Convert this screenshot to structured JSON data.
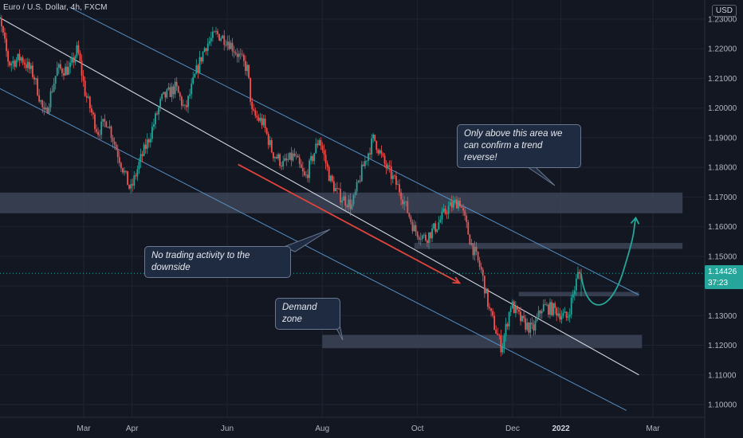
{
  "symbol": {
    "title": "Euro / U.S. Dollar, 4h, FXCM"
  },
  "currency_button": "USD",
  "price_tag": {
    "price": "1.14426",
    "countdown": "37:23",
    "color": "#26a69a"
  },
  "colors": {
    "background": "#131722",
    "bull": "#26a69a",
    "bear": "#ef5350",
    "channel_edge": "#5b9bd5",
    "channel_mid": "#e8ecf4",
    "zone": "#3c4456",
    "red_arrow": "#e0443c",
    "projection_arrow": "#26a69a"
  },
  "annotations": {
    "trend_reverse": "Only above this area we can confirm a trend reverse!",
    "no_trading": "No trading activity to the downside",
    "demand": "Demand zone"
  },
  "chart_data": {
    "type": "candlestick",
    "title": "Euro / U.S. Dollar, 4h, FXCM",
    "ylim": [
      1.094,
      1.234
    ],
    "y_ticks": [
      "1.23000",
      "1.22000",
      "1.21000",
      "1.20000",
      "1.19000",
      "1.18000",
      "1.17000",
      "1.16000",
      "1.15000",
      "1.14000",
      "1.13000",
      "1.12000",
      "1.11000",
      "1.10000"
    ],
    "y_tick_values": [
      1.23,
      1.22,
      1.21,
      1.2,
      1.19,
      1.18,
      1.17,
      1.16,
      1.15,
      1.14,
      1.13,
      1.12,
      1.11,
      1.1
    ],
    "x_labels": [
      "Mar",
      "Apr",
      "Jun",
      "Aug",
      "Oct",
      "Dec",
      "2022",
      "Mar"
    ],
    "x_label_dates": [
      "2021-03-01",
      "2021-04-01",
      "2021-06-01",
      "2021-08-01",
      "2021-10-01",
      "2021-12-01",
      "2022-01-01",
      "2022-03-01"
    ],
    "xlim": [
      "2021-01-01",
      "2022-03-20"
    ],
    "price_path": [
      [
        "2021-01-01",
        1.223
      ],
      [
        "2021-01-06",
        1.23
      ],
      [
        "2021-01-12",
        1.215
      ],
      [
        "2021-01-20",
        1.217
      ],
      [
        "2021-01-28",
        1.211
      ],
      [
        "2021-02-04",
        1.197
      ],
      [
        "2021-02-12",
        1.213
      ],
      [
        "2021-02-20",
        1.213
      ],
      [
        "2021-02-25",
        1.22
      ],
      [
        "2021-03-02",
        1.205
      ],
      [
        "2021-03-10",
        1.192
      ],
      [
        "2021-03-16",
        1.196
      ],
      [
        "2021-03-22",
        1.186
      ],
      [
        "2021-03-31",
        1.172
      ],
      [
        "2021-04-06",
        1.182
      ],
      [
        "2021-04-12",
        1.19
      ],
      [
        "2021-04-20",
        1.203
      ],
      [
        "2021-04-29",
        1.207
      ],
      [
        "2021-05-05",
        1.199
      ],
      [
        "2021-05-12",
        1.212
      ],
      [
        "2021-05-18",
        1.221
      ],
      [
        "2021-05-25",
        1.225
      ],
      [
        "2021-06-01",
        1.223
      ],
      [
        "2021-06-08",
        1.218
      ],
      [
        "2021-06-14",
        1.213
      ],
      [
        "2021-06-17",
        1.198
      ],
      [
        "2021-06-24",
        1.195
      ],
      [
        "2021-06-30",
        1.185
      ],
      [
        "2021-07-07",
        1.181
      ],
      [
        "2021-07-14",
        1.184
      ],
      [
        "2021-07-21",
        1.176
      ],
      [
        "2021-07-30",
        1.19
      ],
      [
        "2021-08-06",
        1.176
      ],
      [
        "2021-08-11",
        1.171
      ],
      [
        "2021-08-20",
        1.167
      ],
      [
        "2021-08-27",
        1.18
      ],
      [
        "2021-09-03",
        1.19
      ],
      [
        "2021-09-10",
        1.181
      ],
      [
        "2021-09-20",
        1.172
      ],
      [
        "2021-09-29",
        1.159
      ],
      [
        "2021-10-06",
        1.156
      ],
      [
        "2021-10-13",
        1.16
      ],
      [
        "2021-10-20",
        1.166
      ],
      [
        "2021-10-28",
        1.169
      ],
      [
        "2021-11-04",
        1.155
      ],
      [
        "2021-11-11",
        1.145
      ],
      [
        "2021-11-16",
        1.132
      ],
      [
        "2021-11-24",
        1.119
      ],
      [
        "2021-11-30",
        1.134
      ],
      [
        "2021-12-07",
        1.128
      ],
      [
        "2021-12-14",
        1.125
      ],
      [
        "2021-12-20",
        1.133
      ],
      [
        "2021-12-28",
        1.132
      ],
      [
        "2022-01-05",
        1.129
      ],
      [
        "2022-01-12",
        1.144
      ],
      [
        "2022-01-14",
        1.144
      ]
    ],
    "last_price": 1.14426,
    "channel": {
      "upper": [
        [
          "2021-02-20",
          1.234
        ],
        [
          "2022-02-20",
          1.137
        ]
      ],
      "middle": [
        [
          "2021-01-01",
          1.232
        ],
        [
          "2022-02-20",
          1.11
        ]
      ],
      "lower": [
        [
          "2021-01-01",
          1.208
        ],
        [
          "2022-02-12",
          1.098
        ]
      ]
    },
    "zones": [
      {
        "name": "resistance-zone",
        "from": "2021-01-01",
        "to": "2022-03-20",
        "low": 1.1645,
        "high": 1.1715
      },
      {
        "name": "upper-zone",
        "from": "2021-09-29",
        "to": "2022-03-20",
        "low": 1.1525,
        "high": 1.1545
      },
      {
        "name": "consolidation-zone",
        "from": "2021-12-05",
        "to": "2022-02-20",
        "low": 1.1365,
        "high": 1.138
      },
      {
        "name": "demand-zone",
        "from": "2021-08-01",
        "to": "2022-02-22",
        "low": 1.119,
        "high": 1.1235
      }
    ],
    "arrows": [
      {
        "name": "down-arrow",
        "from": [
          "2021-06-08",
          1.181
        ],
        "to": [
          "2021-10-28",
          1.141
        ]
      },
      {
        "name": "projection-arrow",
        "path": [
          [
            "2022-01-14",
            1.144
          ],
          [
            "2022-01-28",
            1.134
          ],
          [
            "2022-02-10",
            1.145
          ],
          [
            "2022-02-18",
            1.163
          ]
        ]
      }
    ]
  }
}
